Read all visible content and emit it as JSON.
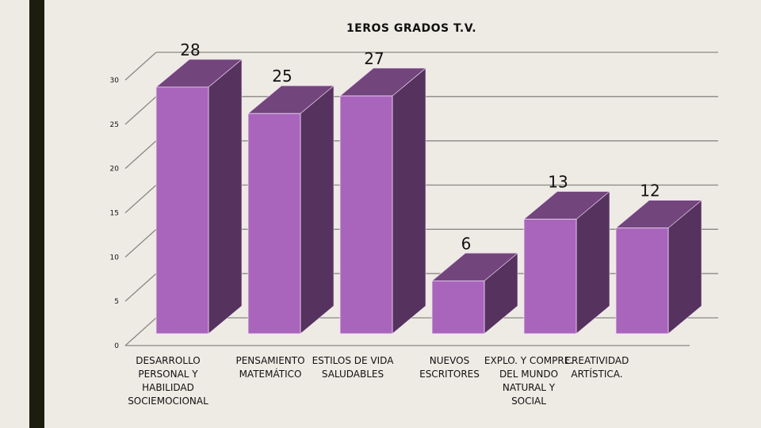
{
  "slide": {
    "accent_bar_color": "#1c1c0f",
    "background": "#eeebe4"
  },
  "chart_data": {
    "type": "bar",
    "style": "3d-column",
    "title": "1EROS GRADOS T.V.",
    "categories": [
      "DESARROLLO PERSONAL Y HABILIDAD SOCIEMOCIONAL",
      "PENSAMIENTO MATEMÁTICO",
      "ESTILOS DE VIDA SALUDABLES",
      "NUEVOS ESCRITORES",
      "EXPLO. Y COMPRE. DEL MUNDO NATURAL Y SOCIAL",
      "CREATIVIDAD ARTÍSTICA."
    ],
    "category_lines": [
      [
        "DESARROLLO",
        "PERSONAL Y",
        "HABILIDAD",
        "SOCIEMOCIONAL"
      ],
      [
        "PENSAMIENTO",
        "MATEMÁTICO"
      ],
      [
        "ESTILOS DE VIDA",
        "SALUDABLES"
      ],
      [
        "NUEVOS",
        "ESCRITORES"
      ],
      [
        "EXPLO. Y COMPRE.",
        "DEL MUNDO",
        "NATURAL Y",
        "SOCIAL"
      ],
      [
        "CREATIVIDAD",
        "ARTÍSTICA."
      ]
    ],
    "values": [
      28,
      25,
      27,
      6,
      13,
      12
    ],
    "data_labels": [
      "28",
      "25",
      "27",
      "6",
      "13",
      "12"
    ],
    "xlabel": "",
    "ylabel": "",
    "ylim": [
      0,
      30
    ],
    "yticks": [
      0,
      5,
      10,
      15,
      20,
      25,
      30
    ],
    "grid": true,
    "legend": null,
    "colors": {
      "front": "#a865bb",
      "top": "#73457d",
      "side": "#56325e",
      "grid": "#8a8884"
    }
  }
}
